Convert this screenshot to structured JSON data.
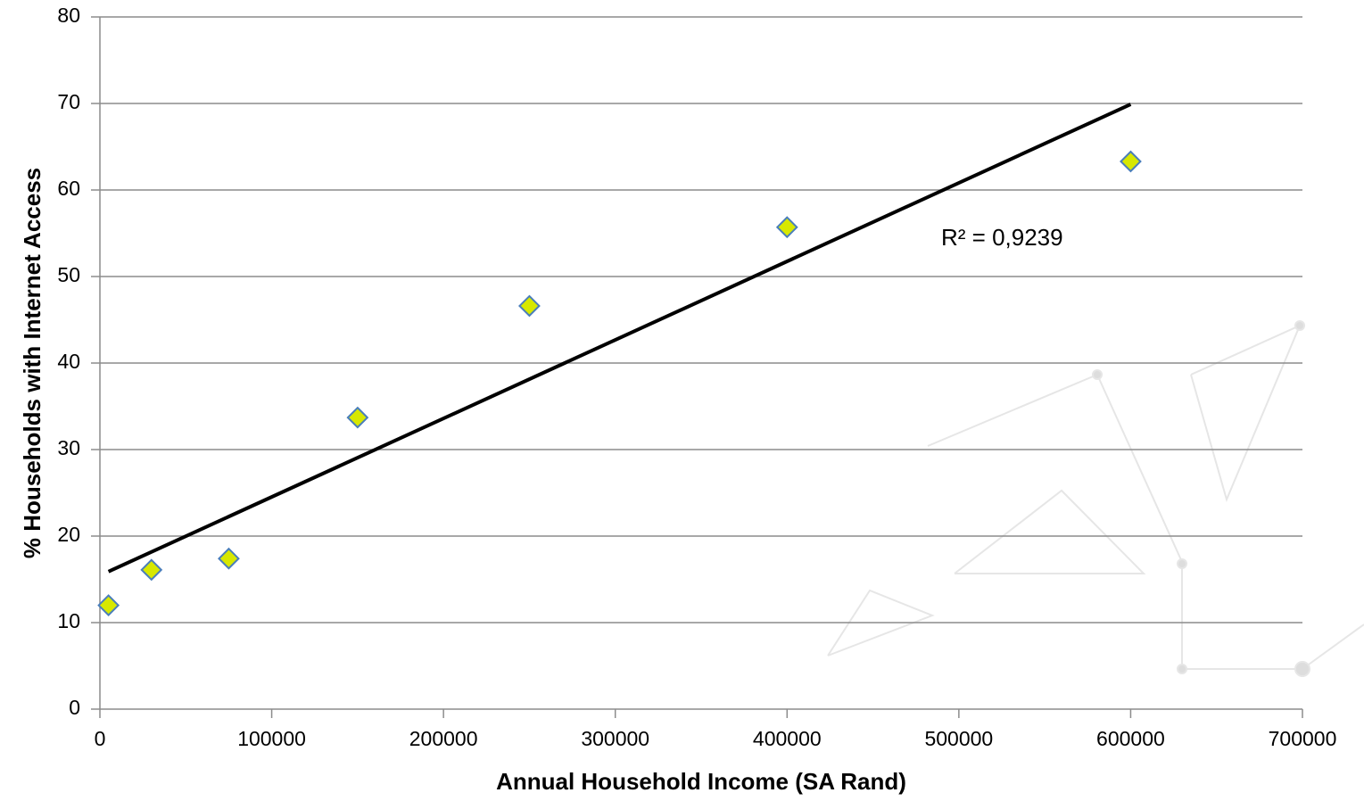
{
  "chart_data": {
    "type": "scatter",
    "x_label": "Annual Household Income (SA Rand)",
    "y_label": "% Households with Internet Access",
    "annotation": "R² = 0,9239",
    "series": [
      {
        "color": "#d7e800",
        "edge_color": "#4a7ebb",
        "x": [
          5000,
          30000,
          75000,
          150000,
          250000,
          400000,
          600000
        ],
        "values": [
          12,
          16.1,
          17.4,
          33.7,
          46.6,
          55.7,
          63.3
        ]
      }
    ],
    "trendline": {
      "color": "#000000",
      "x": [
        5000,
        600000
      ],
      "y": [
        15.9,
        69.9
      ]
    },
    "xlim": [
      0,
      700000
    ],
    "xticks": [
      0,
      100000,
      200000,
      300000,
      400000,
      500000,
      600000,
      700000
    ],
    "ylim": [
      0,
      80
    ],
    "yticks": [
      0,
      10,
      20,
      30,
      40,
      50,
      60,
      70,
      80
    ],
    "grid": true
  }
}
